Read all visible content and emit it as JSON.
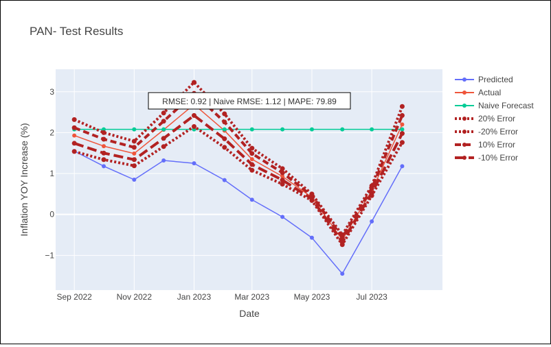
{
  "chart_data": {
    "type": "line",
    "title": "PAN- Test Results",
    "xlabel": "Date",
    "ylabel": "Inflation YOY Increase (%)",
    "annotation": "RMSE: 0.92 | Naive RMSE: 1.12 | MAPE: 79.89",
    "x": [
      "2022-09-01",
      "2022-10-01",
      "2022-11-01",
      "2022-12-01",
      "2023-01-01",
      "2023-02-01",
      "2023-03-01",
      "2023-04-01",
      "2023-05-01",
      "2023-06-01",
      "2023-07-01",
      "2023-08-01"
    ],
    "xlim": [
      "2022-08-13",
      "2023-09-11"
    ],
    "ylim": [
      -1.85,
      3.55
    ],
    "x_ticks": [
      {
        "date": "2022-09-01",
        "label": "Sep 2022"
      },
      {
        "date": "2022-11-01",
        "label": "Nov 2022"
      },
      {
        "date": "2023-01-01",
        "label": "Jan 2023"
      },
      {
        "date": "2023-03-01",
        "label": "Mar 2023"
      },
      {
        "date": "2023-05-01",
        "label": "May 2023"
      },
      {
        "date": "2023-07-01",
        "label": "Jul 2023"
      }
    ],
    "y_ticks": [
      {
        "value": -1,
        "label": "−1"
      },
      {
        "value": 0,
        "label": "0"
      },
      {
        "value": 1,
        "label": "1"
      },
      {
        "value": 2,
        "label": "2"
      },
      {
        "value": 3,
        "label": "3"
      }
    ],
    "grid": true,
    "legend_position": "right",
    "series": [
      {
        "name": "Predicted",
        "color": "#636efa",
        "style": "solid",
        "markers": true,
        "values": [
          1.55,
          1.18,
          0.85,
          1.32,
          1.25,
          0.84,
          0.36,
          -0.06,
          -0.57,
          -1.45,
          -0.17,
          1.18
        ]
      },
      {
        "name": "Actual",
        "color": "#ef553b",
        "style": "solid",
        "markers": true,
        "values": [
          1.93,
          1.67,
          1.49,
          2.07,
          2.69,
          2.05,
          1.35,
          0.93,
          0.42,
          -0.62,
          0.58,
          2.2
        ]
      },
      {
        "name": "Naive Forecast",
        "color": "#00cc96",
        "style": "solid",
        "markers": true,
        "values": [
          2.08,
          2.08,
          2.08,
          2.08,
          2.08,
          2.08,
          2.08,
          2.08,
          2.08,
          2.08,
          2.08,
          2.08
        ]
      },
      {
        "name": "20% Error",
        "color": "#b22222",
        "style": "dot",
        "markers": true,
        "values": [
          2.32,
          2.0,
          1.79,
          2.48,
          3.23,
          2.46,
          1.62,
          1.12,
          0.5,
          -0.5,
          0.7,
          2.64
        ]
      },
      {
        "name": "-20% Error",
        "color": "#b22222",
        "style": "dot",
        "markers": true,
        "values": [
          1.54,
          1.34,
          1.19,
          1.66,
          2.15,
          1.64,
          1.08,
          0.74,
          0.34,
          -0.74,
          0.46,
          1.76
        ]
      },
      {
        "name": "10% Error",
        "color": "#b22222",
        "style": "dash",
        "markers": true,
        "values": [
          2.12,
          1.84,
          1.64,
          2.28,
          2.96,
          2.26,
          1.49,
          1.02,
          0.46,
          -0.56,
          0.64,
          2.42
        ]
      },
      {
        "name": "-10% Error",
        "color": "#b22222",
        "style": "longdash",
        "markers": true,
        "values": [
          1.74,
          1.5,
          1.34,
          1.86,
          2.42,
          1.85,
          1.22,
          0.84,
          0.38,
          -0.68,
          0.52,
          1.98
        ]
      }
    ]
  }
}
